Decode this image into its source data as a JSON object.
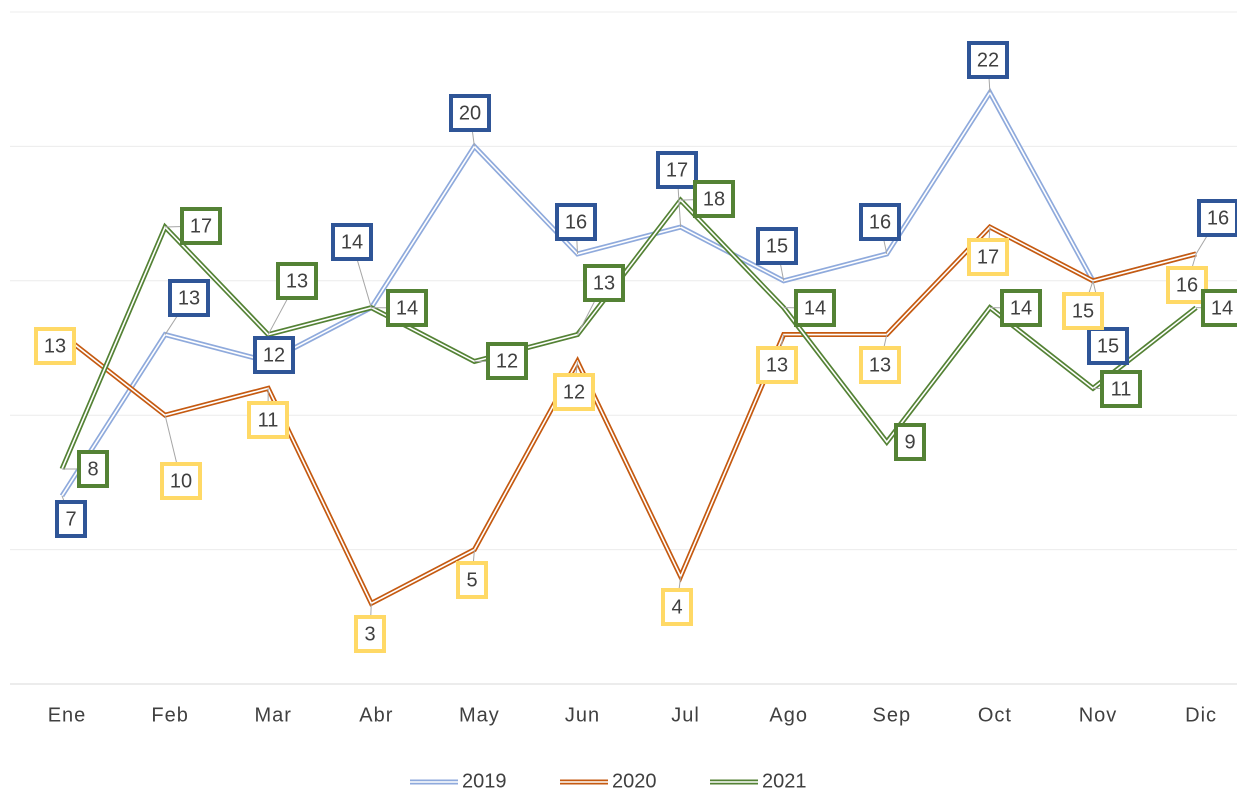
{
  "chart_data": {
    "type": "line",
    "categories": [
      "Ene",
      "Feb",
      "Mar",
      "Abr",
      "May",
      "Jun",
      "Jul",
      "Ago",
      "Sep",
      "Oct",
      "Nov",
      "Dic"
    ],
    "series": [
      {
        "name": "2019",
        "color": "#8faadc",
        "label_color": "#2f5597",
        "values": [
          7,
          13,
          12,
          14,
          20,
          16,
          17,
          15,
          16,
          22,
          15,
          16
        ]
      },
      {
        "name": "2020",
        "color": "#c55a11",
        "label_color": "#ffd966",
        "values": [
          13,
          10,
          11,
          3,
          5,
          12,
          4,
          13,
          13,
          17,
          15,
          16
        ]
      },
      {
        "name": "2021",
        "color": "#548235",
        "label_color": "#548235",
        "values": [
          8,
          17,
          13,
          14,
          12,
          13,
          18,
          14,
          9,
          14,
          11,
          14
        ]
      }
    ],
    "ylim": [
      0,
      25
    ],
    "yticks": [
      0,
      5,
      10,
      15,
      20,
      25
    ],
    "grid": true,
    "legend": "bottom"
  }
}
